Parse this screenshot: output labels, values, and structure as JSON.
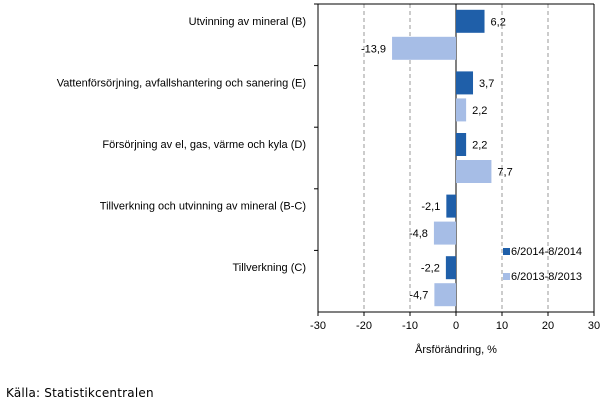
{
  "chart_data": {
    "type": "bar",
    "orientation": "horizontal",
    "categories": [
      "Utvinning av mineral  (B)",
      "Vattenförsörjning, avfallshantering och sanering (E)",
      "Försörjning av el, gas, värme och kyla (D)",
      "Tillverkning och utvinning av mineral (B-C)",
      "Tillverkning (C)"
    ],
    "series": [
      {
        "name": "6/2014-8/2014",
        "color": "#1f5fa9",
        "values": [
          6.2,
          3.7,
          2.2,
          -2.1,
          -2.2
        ],
        "labels": [
          "6,2",
          "3,7",
          "2,2",
          "-2,1",
          "-2,2"
        ]
      },
      {
        "name": "6/2013-8/2013",
        "color": "#a6bde6",
        "values": [
          -13.9,
          2.2,
          7.7,
          -4.8,
          -4.7
        ],
        "labels": [
          "-13,9",
          "2,2",
          "7,7",
          "-4,8",
          "-4,7"
        ]
      }
    ],
    "xlim": [
      -30,
      30
    ],
    "xticks": [
      -30,
      -20,
      -10,
      0,
      10,
      20,
      30
    ],
    "xtick_labels": [
      "-30",
      "-20",
      "-10",
      "0",
      "10",
      "20",
      "30"
    ],
    "xlabel": "Årsförändring, %",
    "grid": "vertical dashed",
    "legend_position": "bottom-right inside"
  },
  "footer": {
    "source": "Källa: Statistikcentralen"
  }
}
